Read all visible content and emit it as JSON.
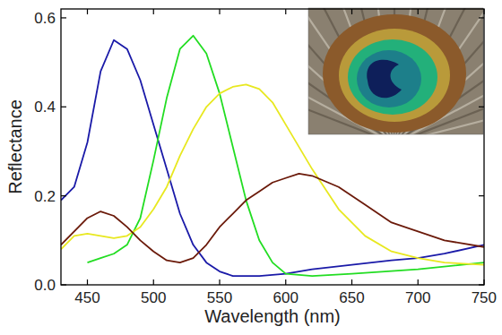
{
  "chart_data": {
    "type": "line",
    "x_label": "Wavelength (nm)",
    "y_label": "Reflectance",
    "xlim": [
      430,
      750
    ],
    "ylim": [
      0,
      0.62
    ],
    "xticks": [
      450,
      500,
      550,
      600,
      650,
      700,
      750
    ],
    "yticks": [
      {
        "value": 0,
        "label": "0.0"
      },
      0.2,
      0.4,
      0.6
    ],
    "grid": false,
    "series": [
      {
        "color": "#1a1aa8",
        "x": [
          430,
          440,
          450,
          460,
          470,
          480,
          490,
          500,
          510,
          520,
          530,
          540,
          550,
          560,
          580,
          600,
          620,
          650,
          680,
          700,
          720,
          750
        ],
        "values": [
          0.19,
          0.22,
          0.32,
          0.48,
          0.55,
          0.53,
          0.46,
          0.36,
          0.26,
          0.16,
          0.09,
          0.05,
          0.03,
          0.02,
          0.02,
          0.025,
          0.035,
          0.045,
          0.055,
          0.06,
          0.07,
          0.09
        ]
      },
      {
        "color": "#22dd22",
        "x": [
          450,
          460,
          470,
          480,
          490,
          500,
          510,
          520,
          530,
          540,
          550,
          560,
          570,
          580,
          590,
          600,
          620,
          650,
          700,
          750
        ],
        "values": [
          0.05,
          0.06,
          0.07,
          0.09,
          0.15,
          0.28,
          0.42,
          0.53,
          0.56,
          0.52,
          0.43,
          0.31,
          0.19,
          0.1,
          0.05,
          0.025,
          0.02,
          0.025,
          0.035,
          0.05
        ]
      },
      {
        "color": "#e8e820",
        "x": [
          430,
          440,
          450,
          460,
          470,
          480,
          490,
          500,
          510,
          520,
          530,
          540,
          550,
          560,
          570,
          580,
          590,
          600,
          620,
          640,
          660,
          680,
          700,
          720,
          750
        ],
        "values": [
          0.08,
          0.11,
          0.115,
          0.11,
          0.105,
          0.11,
          0.13,
          0.17,
          0.22,
          0.29,
          0.35,
          0.4,
          0.43,
          0.445,
          0.45,
          0.44,
          0.41,
          0.36,
          0.26,
          0.17,
          0.11,
          0.075,
          0.06,
          0.05,
          0.045
        ]
      },
      {
        "color": "#6b1a0a",
        "x": [
          430,
          440,
          450,
          460,
          470,
          480,
          490,
          500,
          510,
          520,
          530,
          540,
          550,
          560,
          570,
          580,
          590,
          600,
          610,
          620,
          640,
          660,
          680,
          700,
          720,
          750
        ],
        "values": [
          0.09,
          0.12,
          0.15,
          0.165,
          0.155,
          0.13,
          0.1,
          0.075,
          0.055,
          0.05,
          0.06,
          0.09,
          0.13,
          0.16,
          0.19,
          0.21,
          0.23,
          0.24,
          0.25,
          0.245,
          0.22,
          0.18,
          0.14,
          0.12,
          0.1,
          0.085
        ]
      }
    ]
  }
}
